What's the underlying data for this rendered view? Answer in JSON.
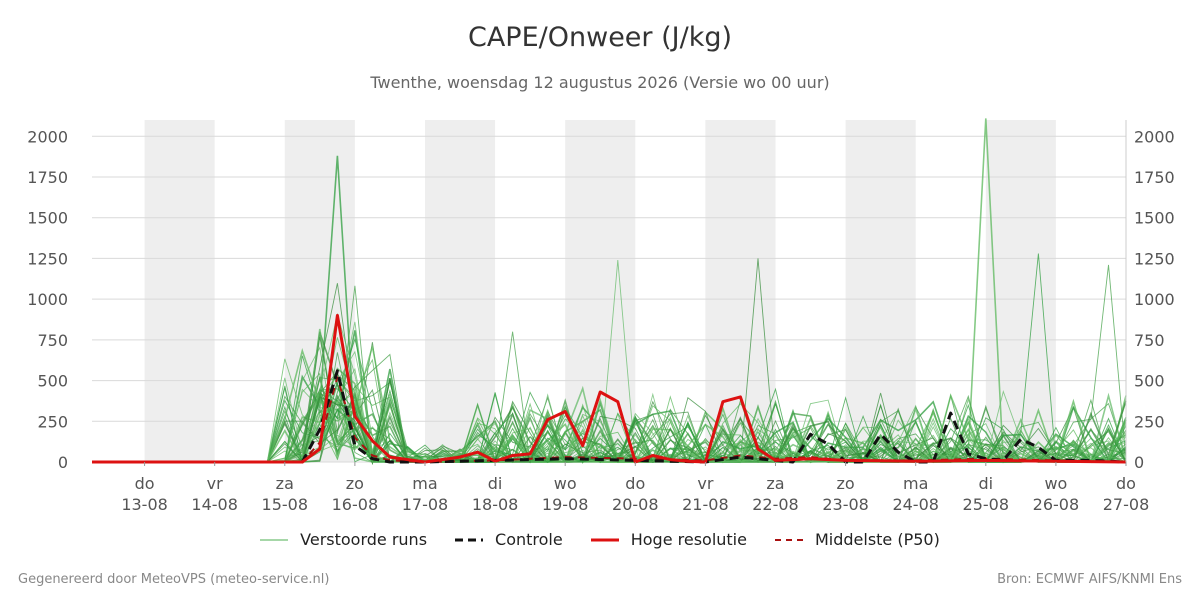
{
  "title": "CAPE/Onweer (J/kg)",
  "subtitle": "Twenthe, woensdag 12 augustus 2026 (Versie wo 00 uur)",
  "footer": {
    "left": "Gegenereerd door MeteoVPS (meteo-service.nl)",
    "right": "Bron: ECMWF AIFS/KNMI Ens"
  },
  "legend": [
    {
      "label": "Verstoorde runs",
      "color": "#4caf50",
      "style": "thin-solid"
    },
    {
      "label": "Controle",
      "color": "#111111",
      "style": "dashed"
    },
    {
      "label": "Hoge resolutie",
      "color": "#dd1111",
      "style": "thick-solid"
    },
    {
      "label": "Middelste (P50)",
      "color": "#aa1111",
      "style": "dashed"
    }
  ],
  "chart_data": {
    "type": "line",
    "x_unit": "days since 13-08 00 uur",
    "xlim": [
      -0.75,
      14.0
    ],
    "ylim": [
      0,
      2100
    ],
    "yticks": [
      0,
      250,
      500,
      750,
      1000,
      1250,
      1500,
      1750,
      2000
    ],
    "grid": true,
    "legend_position": "bottom",
    "weekend_shading": [
      [
        0,
        1
      ],
      [
        2,
        3
      ],
      [
        4,
        5
      ],
      [
        6,
        7
      ],
      [
        8,
        9
      ],
      [
        10,
        11
      ],
      [
        12,
        13
      ]
    ],
    "x_ticks": [
      {
        "day": "do",
        "date": "13-08"
      },
      {
        "day": "vr",
        "date": "14-08"
      },
      {
        "day": "za",
        "date": "15-08"
      },
      {
        "day": "zo",
        "date": "16-08"
      },
      {
        "day": "ma",
        "date": "17-08"
      },
      {
        "day": "di",
        "date": "18-08"
      },
      {
        "day": "wo",
        "date": "19-08"
      },
      {
        "day": "do",
        "date": "20-08"
      },
      {
        "day": "vr",
        "date": "21-08"
      },
      {
        "day": "za",
        "date": "22-08"
      },
      {
        "day": "zo",
        "date": "23-08"
      },
      {
        "day": "ma",
        "date": "24-08"
      },
      {
        "day": "di",
        "date": "25-08"
      },
      {
        "day": "wo",
        "date": "26-08"
      },
      {
        "day": "do",
        "date": "27-08"
      }
    ],
    "series": [
      {
        "name": "Controle",
        "x": [
          -0.75,
          0,
          1,
          2,
          2.25,
          2.5,
          2.75,
          3,
          3.25,
          3.5,
          4,
          5,
          6,
          7,
          8,
          8.5,
          8.75,
          9,
          9.25,
          9.5,
          9.75,
          10,
          10.25,
          10.5,
          10.75,
          11,
          11.25,
          11.5,
          11.75,
          12,
          12.25,
          12.5,
          12.75,
          13,
          13.5,
          14
        ],
        "y": [
          0,
          0,
          0,
          0,
          0,
          200,
          560,
          100,
          20,
          0,
          0,
          10,
          20,
          10,
          0,
          30,
          20,
          10,
          0,
          170,
          110,
          0,
          0,
          170,
          60,
          0,
          0,
          300,
          50,
          20,
          10,
          140,
          90,
          10,
          10,
          0
        ]
      },
      {
        "name": "Hoge resolutie",
        "x": [
          -0.75,
          0,
          1,
          2,
          2.25,
          2.5,
          2.75,
          3,
          3.25,
          3.5,
          4,
          4.5,
          4.75,
          5,
          5.25,
          5.5,
          5.75,
          6,
          6.25,
          6.5,
          6.75,
          7,
          7.25,
          7.5,
          7.75,
          8,
          8.25,
          8.5,
          8.75,
          9,
          9.5,
          10,
          11,
          12,
          13,
          14
        ],
        "y": [
          0,
          0,
          0,
          0,
          0,
          80,
          900,
          280,
          130,
          30,
          0,
          30,
          60,
          5,
          40,
          50,
          260,
          310,
          100,
          430,
          370,
          0,
          40,
          15,
          5,
          0,
          370,
          400,
          80,
          10,
          20,
          10,
          5,
          10,
          5,
          0
        ]
      },
      {
        "name": "Middelste (P50)",
        "x": [
          -0.75,
          0,
          1,
          2,
          2.25,
          2.5,
          2.75,
          3,
          3.25,
          3.5,
          4,
          5,
          6,
          7,
          8,
          8.5,
          9,
          9.5,
          10,
          11,
          12,
          13,
          14
        ],
        "y": [
          0,
          0,
          0,
          0,
          0,
          120,
          520,
          150,
          40,
          10,
          0,
          10,
          30,
          20,
          10,
          40,
          20,
          30,
          10,
          10,
          20,
          10,
          0
        ]
      }
    ],
    "ensemble_highlights": {
      "name": "Verstoorde runs",
      "peaks": [
        {
          "x": 2.75,
          "y": 1880
        },
        {
          "x": 5.25,
          "y": 800
        },
        {
          "x": 6.75,
          "y": 1240
        },
        {
          "x": 8.75,
          "y": 1250
        },
        {
          "x": 12.0,
          "y": 2110
        },
        {
          "x": 12.75,
          "y": 1280
        },
        {
          "x": 13.75,
          "y": 1210
        }
      ]
    }
  }
}
